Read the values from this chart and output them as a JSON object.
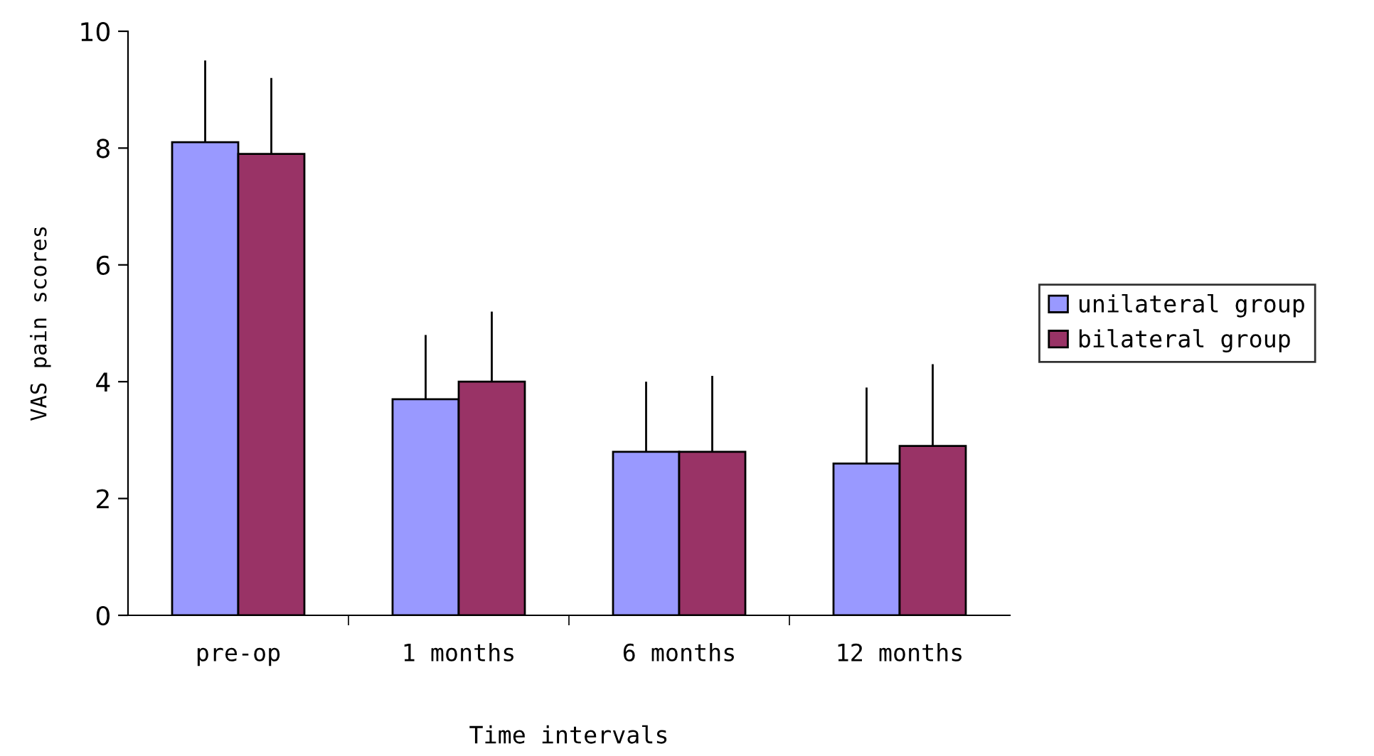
{
  "chart_data": {
    "type": "bar",
    "xlabel": "Time intervals",
    "ylabel": "VAS pain scores",
    "categories": [
      "pre-op",
      "1 months",
      "6 months",
      "12 months"
    ],
    "series": [
      {
        "name": "unilateral group",
        "color": "#9999ff",
        "values": [
          8.1,
          3.7,
          2.8,
          2.6
        ],
        "errors": [
          [
            8.1,
            9.5
          ],
          [
            3.7,
            4.8
          ],
          [
            2.8,
            4.0
          ],
          [
            2.6,
            3.9
          ]
        ]
      },
      {
        "name": "bilateral group",
        "color": "#993366",
        "values": [
          7.9,
          4.0,
          2.8,
          2.9
        ],
        "errors": [
          [
            7.9,
            9.2
          ],
          [
            4.0,
            5.2
          ],
          [
            2.8,
            4.1
          ],
          [
            2.9,
            4.3
          ]
        ]
      }
    ],
    "ylim": [
      0,
      10
    ],
    "yticks": [
      0,
      2,
      4,
      6,
      8,
      10
    ],
    "grid": false,
    "legend": "right"
  }
}
